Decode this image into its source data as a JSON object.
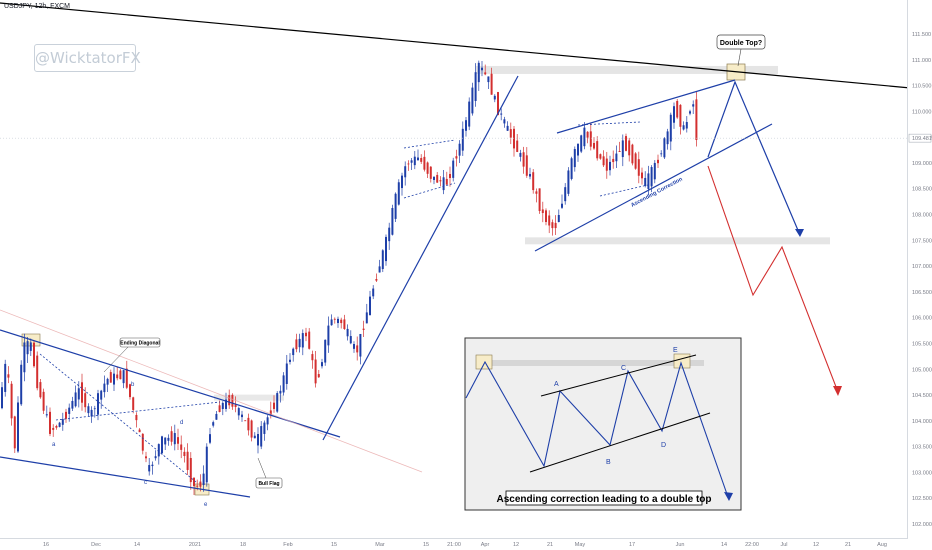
{
  "header": {
    "symbol": "USDJPY, 12h, FXCM",
    "watermark": "@WicktatorFX"
  },
  "chart_data": {
    "type": "candlestick",
    "instrument": "USDJPY",
    "timeframe": "12h",
    "source": "FXCM",
    "y_axis": {
      "ticks": [
        "111.500",
        "111.000",
        "110.500",
        "110.000",
        "109.500",
        "109.000",
        "108.500",
        "108.000",
        "107.500",
        "107.000",
        "106.500",
        "106.000",
        "105.500",
        "105.000",
        "104.500",
        "104.000",
        "103.500",
        "103.000",
        "102.500",
        "102.000"
      ],
      "range": [
        101.9,
        111.8
      ],
      "current_price": "109.481"
    },
    "x_axis": {
      "ticks": [
        "16",
        "Dec",
        "14",
        "2021",
        "18",
        "Feb",
        "15",
        "Mar",
        "15",
        "21:00",
        "Apr",
        "12",
        "21",
        "May",
        "17",
        "Jun",
        "14",
        "22:00",
        "Jul",
        "12",
        "21",
        "Aug"
      ]
    },
    "annotations": {
      "ending_diagonal": "Ending Diagonal",
      "bull_flag": "Bull Flag",
      "double_top": "Double Top?",
      "ascending_correction": "Ascending Correction",
      "wave_labels": [
        "a",
        "b",
        "c",
        "d",
        "e"
      ]
    },
    "inset": {
      "caption": "Ascending correction leading to a double top",
      "labels": [
        "A",
        "B",
        "C",
        "D",
        "E"
      ]
    },
    "colors": {
      "up_candle": "#1e3fa8",
      "down_candle": "#d32f2f",
      "trendline": "#1e3fa8",
      "resistance": "#000000",
      "bearish_projection": "#d32f2f"
    }
  }
}
